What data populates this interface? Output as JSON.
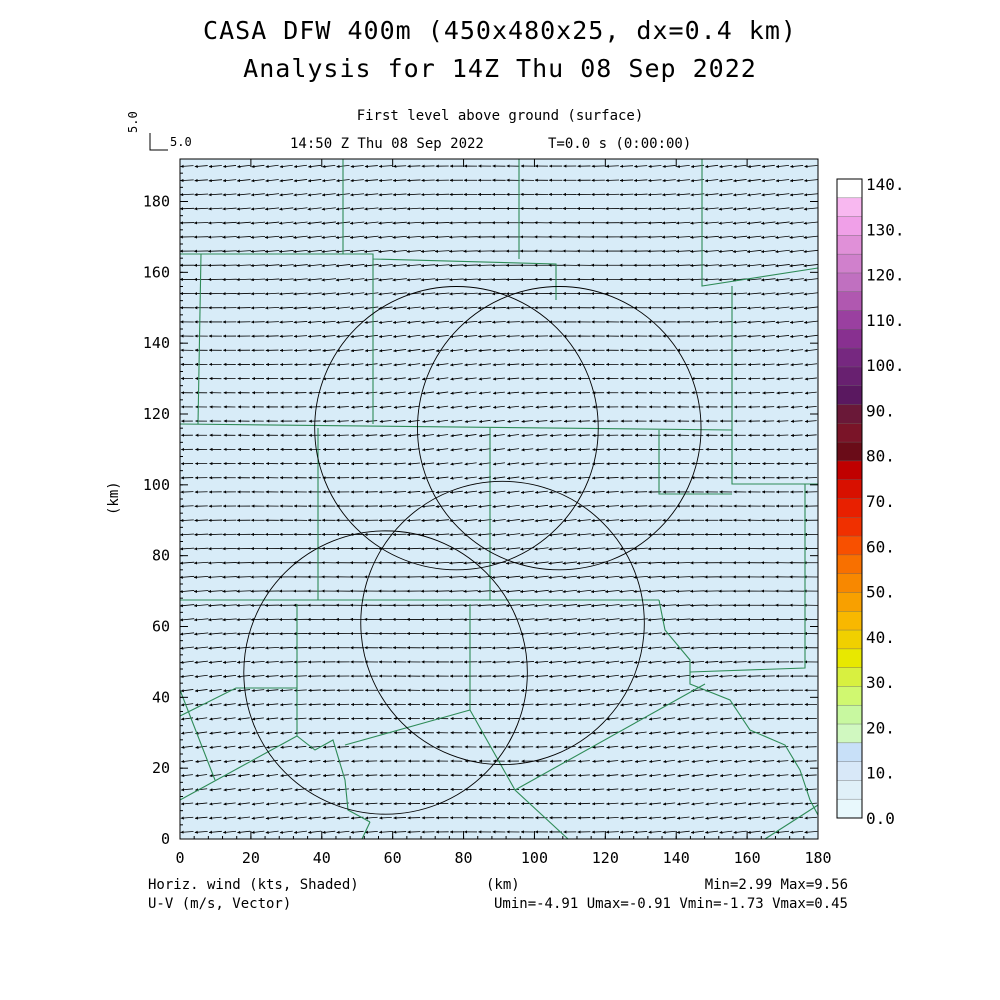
{
  "header": {
    "title_line1": "CASA DFW 400m (450x480x25, dx=0.4 km)",
    "title_line2": "Analysis for 14Z Thu 08 Sep 2022",
    "level": "First level above ground (surface)",
    "valid_time": "14:50 Z Thu 08 Sep 2022",
    "time_offset": "T=0.0 s (0:00:00)",
    "ref_vector_label": "5.0",
    "ref_vector_label_vertical": "5.0"
  },
  "footer": {
    "shaded_field": "Horiz. wind (kts, Shaded)",
    "vector_field": "U-V (m/s, Vector)",
    "x_unit": "(km)",
    "minmax": "Min=2.99 Max=9.56",
    "uv_minmax": "Umin=-4.91 Umax=-0.91 Vmin=-1.73 Vmax=0.45"
  },
  "colors": {
    "background_shade": "#d8ecf8",
    "county_lines": "#2e8b57",
    "range_rings": "#000000"
  },
  "chart_data": {
    "type": "heatmap",
    "xlabel": "",
    "ylabel": "(km)",
    "xlim": [
      0,
      180
    ],
    "ylim": [
      0,
      192
    ],
    "x_ticks": [
      0,
      20,
      40,
      60,
      80,
      100,
      120,
      140,
      160,
      180
    ],
    "y_ticks": [
      0,
      20,
      40,
      60,
      80,
      100,
      120,
      140,
      160,
      180
    ],
    "shaded_min": 2.99,
    "shaded_max": 9.56,
    "vectors": {
      "u_mean": -3.6,
      "v_mean": -0.2,
      "spacing_km": 4
    },
    "radar_rings": [
      {
        "center": [
          78,
          116
        ],
        "radius_km": 40
      },
      {
        "center": [
          107,
          116
        ],
        "radius_km": 40
      },
      {
        "center": [
          91,
          61
        ],
        "radius_km": 40
      },
      {
        "center": [
          58,
          47
        ],
        "radius_km": 40
      }
    ],
    "colorbar": {
      "ticks": [
        "140.",
        "130.",
        "120.",
        "110.",
        "100.",
        "90.",
        "80.",
        "70.",
        "60.",
        "50.",
        "40.",
        "30.",
        "20.",
        "10.",
        "0.0"
      ],
      "colors": [
        "#ffffff",
        "#f8b8f0",
        "#f0a0e8",
        "#e090d8",
        "#d080cc",
        "#c070c0",
        "#b058b0",
        "#9a40a0",
        "#883090",
        "#762880",
        "#682070",
        "#5a1860",
        "#6a1838",
        "#7a1428",
        "#6a0c18",
        "#c00000",
        "#d81000",
        "#e82000",
        "#f03000",
        "#f85000",
        "#f87000",
        "#f88800",
        "#f8a000",
        "#f8b800",
        "#f0d000",
        "#e8e800",
        "#d8f040",
        "#d0f870",
        "#c8f8a0",
        "#d0f8c0",
        "#c8e0f8",
        "#d8e8f8",
        "#e0f0f8",
        "#e8f8fc"
      ]
    }
  }
}
